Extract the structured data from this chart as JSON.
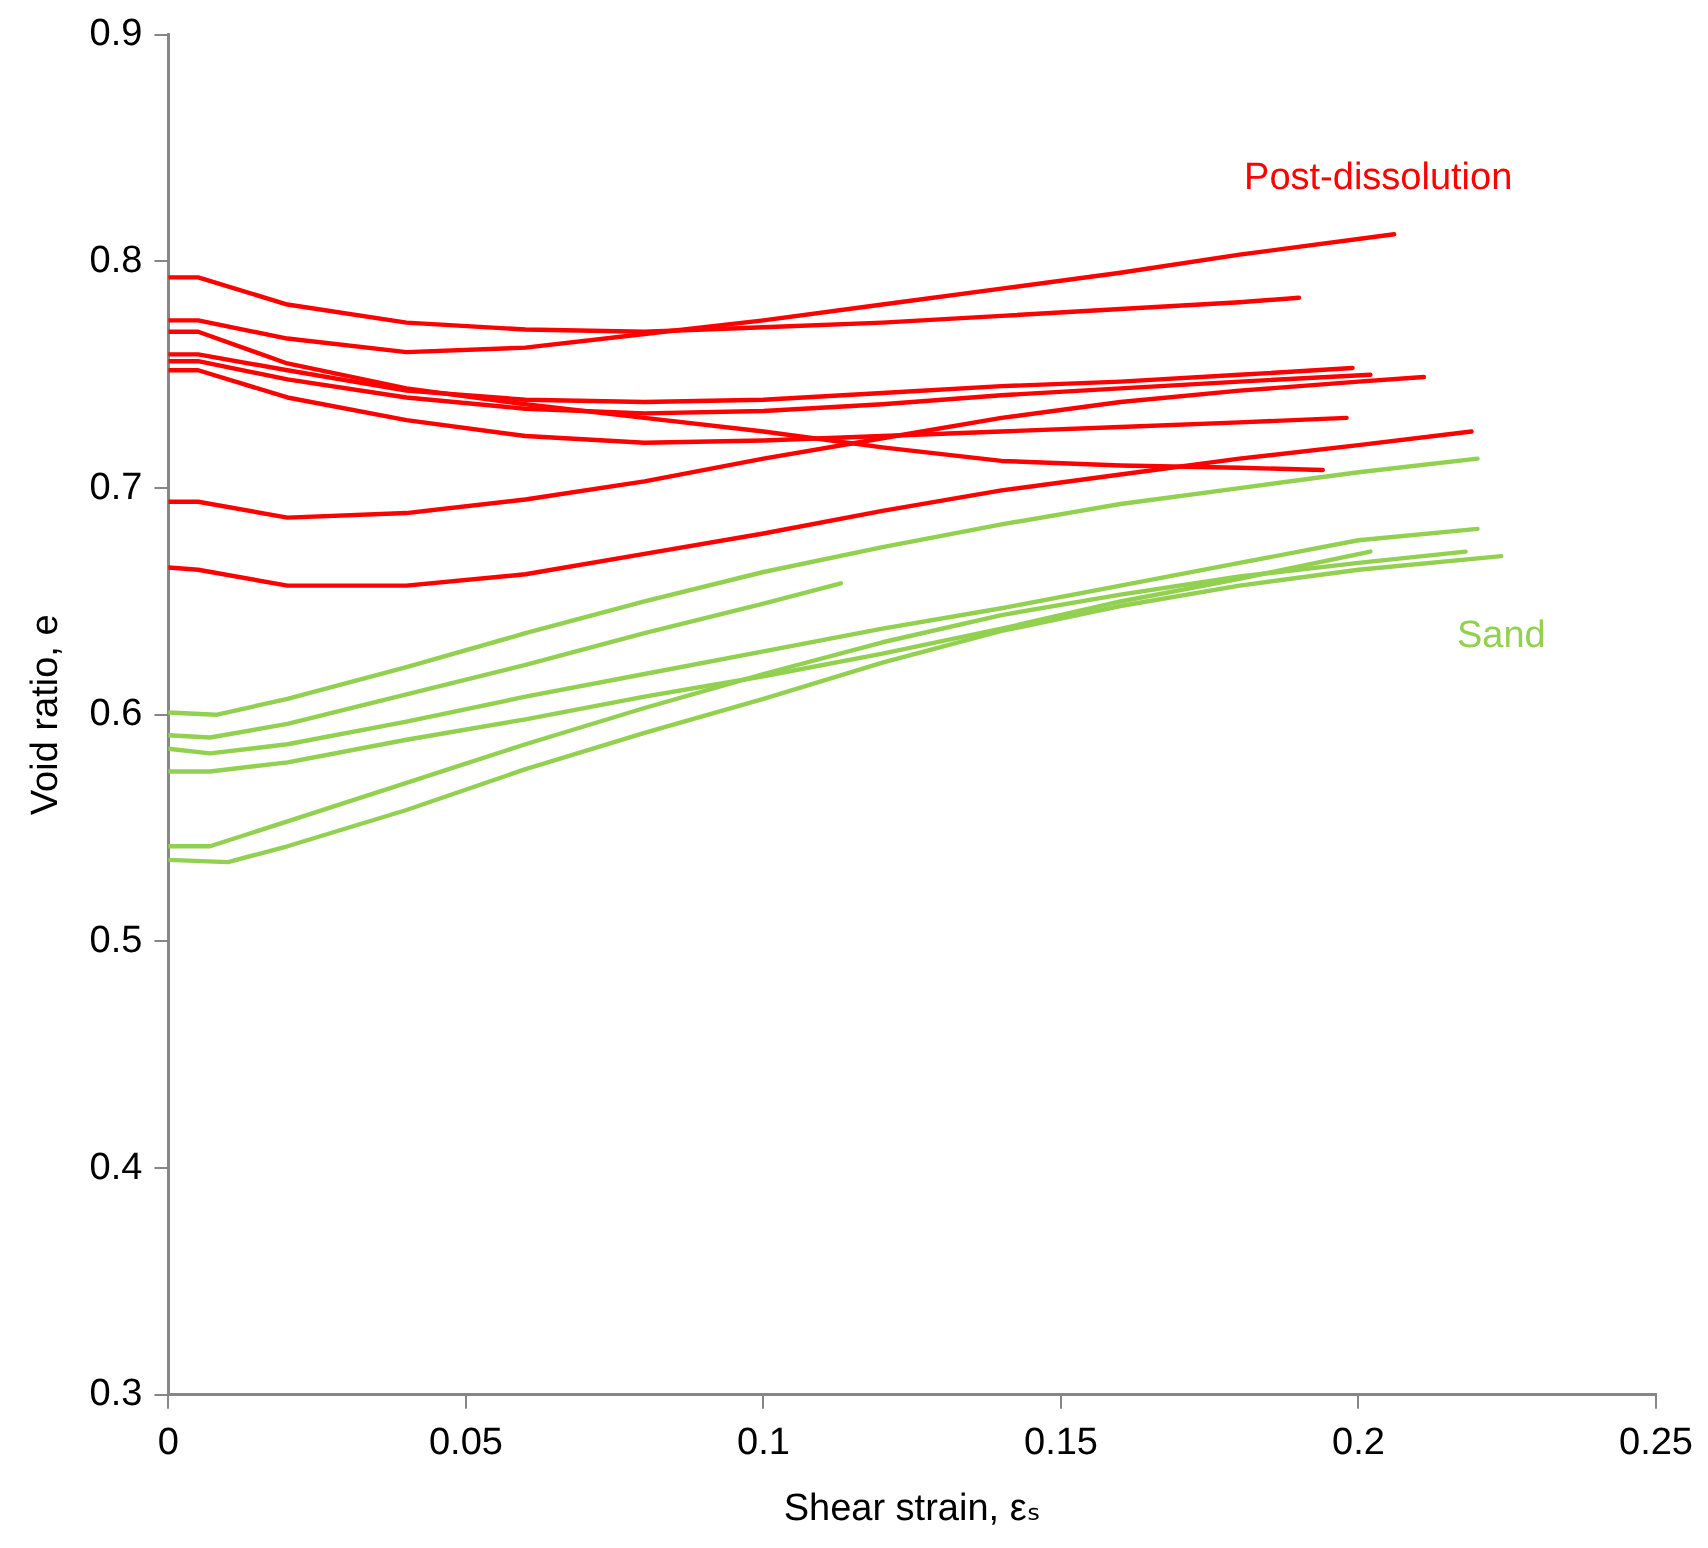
{
  "chart_data": {
    "type": "line",
    "xlabel": "Shear strain, εₛ",
    "ylabel": "Void ratio, e",
    "xlim": [
      0,
      0.25
    ],
    "xticks": [
      0,
      0.05,
      0.1,
      0.15,
      0.2,
      0.25
    ],
    "ylim": [
      0.3,
      0.9
    ],
    "yticks": [
      0.3,
      0.4,
      0.5,
      0.6,
      0.7,
      0.8,
      0.9
    ],
    "grid": false,
    "legend": false,
    "marker": "none",
    "line_style": "solid",
    "annotations": [
      "Post-dissolution",
      "Sand"
    ],
    "series": [
      {
        "color": "#ff0000",
        "x": [
          0,
          0.005,
          0.02,
          0.04,
          0.06,
          0.08,
          0.1,
          0.12,
          0.14,
          0.16,
          0.18,
          0.206
        ],
        "values": [
          0.774,
          0.774,
          0.766,
          0.76,
          0.762,
          0.768,
          0.774,
          0.781,
          0.788,
          0.795,
          0.803,
          0.812
        ]
      },
      {
        "color": "#ff0000",
        "x": [
          0,
          0.005,
          0.02,
          0.04,
          0.06,
          0.08,
          0.1,
          0.12,
          0.14,
          0.16,
          0.18,
          0.19
        ],
        "values": [
          0.793,
          0.793,
          0.781,
          0.773,
          0.77,
          0.769,
          0.771,
          0.773,
          0.776,
          0.779,
          0.782,
          0.784
        ]
      },
      {
        "color": "#ff0000",
        "x": [
          0,
          0.005,
          0.02,
          0.04,
          0.06,
          0.08,
          0.1,
          0.12,
          0.14,
          0.16,
          0.18,
          0.194
        ],
        "values": [
          0.769,
          0.769,
          0.755,
          0.744,
          0.737,
          0.731,
          0.725,
          0.718,
          0.712,
          0.71,
          0.709,
          0.708
        ]
      },
      {
        "color": "#ff0000",
        "x": [
          0,
          0.005,
          0.02,
          0.04,
          0.06,
          0.08,
          0.1,
          0.12,
          0.14,
          0.16,
          0.18,
          0.199
        ],
        "values": [
          0.759,
          0.759,
          0.752,
          0.743,
          0.739,
          0.738,
          0.739,
          0.742,
          0.745,
          0.747,
          0.75,
          0.753
        ]
      },
      {
        "color": "#ff0000",
        "x": [
          0,
          0.005,
          0.02,
          0.04,
          0.06,
          0.08,
          0.1,
          0.12,
          0.14,
          0.16,
          0.18,
          0.202
        ],
        "values": [
          0.756,
          0.756,
          0.748,
          0.74,
          0.735,
          0.733,
          0.734,
          0.737,
          0.741,
          0.744,
          0.747,
          0.75
        ]
      },
      {
        "color": "#ff0000",
        "x": [
          0,
          0.005,
          0.02,
          0.04,
          0.06,
          0.08,
          0.1,
          0.12,
          0.14,
          0.16,
          0.18,
          0.198
        ],
        "values": [
          0.752,
          0.752,
          0.74,
          0.73,
          0.723,
          0.72,
          0.721,
          0.723,
          0.725,
          0.727,
          0.729,
          0.731
        ]
      },
      {
        "color": "#ff0000",
        "x": [
          0,
          0.005,
          0.02,
          0.04,
          0.06,
          0.08,
          0.1,
          0.12,
          0.14,
          0.16,
          0.18,
          0.2,
          0.211
        ],
        "values": [
          0.694,
          0.694,
          0.687,
          0.689,
          0.695,
          0.703,
          0.713,
          0.722,
          0.731,
          0.738,
          0.743,
          0.747,
          0.749
        ]
      },
      {
        "color": "#ff0000",
        "x": [
          0,
          0.005,
          0.02,
          0.04,
          0.06,
          0.08,
          0.1,
          0.12,
          0.14,
          0.16,
          0.18,
          0.2,
          0.219
        ],
        "values": [
          0.665,
          0.664,
          0.657,
          0.657,
          0.662,
          0.671,
          0.68,
          0.69,
          0.699,
          0.706,
          0.713,
          0.719,
          0.725
        ]
      },
      {
        "color": "#92d050",
        "x": [
          0,
          0.008,
          0.02,
          0.04,
          0.06,
          0.08,
          0.1,
          0.12,
          0.14,
          0.16,
          0.18,
          0.2,
          0.22
        ],
        "values": [
          0.601,
          0.6,
          0.607,
          0.621,
          0.636,
          0.65,
          0.663,
          0.674,
          0.684,
          0.693,
          0.7,
          0.707,
          0.713
        ]
      },
      {
        "color": "#92d050",
        "x": [
          0,
          0.007,
          0.02,
          0.04,
          0.06,
          0.08,
          0.1,
          0.113
        ],
        "values": [
          0.591,
          0.59,
          0.596,
          0.609,
          0.622,
          0.636,
          0.649,
          0.658
        ]
      },
      {
        "color": "#92d050",
        "x": [
          0,
          0.007,
          0.02,
          0.04,
          0.06,
          0.08,
          0.1,
          0.12,
          0.14,
          0.16,
          0.18,
          0.2,
          0.22
        ],
        "values": [
          0.585,
          0.583,
          0.587,
          0.597,
          0.608,
          0.618,
          0.628,
          0.638,
          0.647,
          0.657,
          0.667,
          0.677,
          0.682
        ]
      },
      {
        "color": "#92d050",
        "x": [
          0,
          0.007,
          0.02,
          0.04,
          0.06,
          0.08,
          0.1,
          0.12,
          0.14,
          0.16,
          0.18,
          0.202
        ],
        "values": [
          0.575,
          0.575,
          0.579,
          0.589,
          0.598,
          0.608,
          0.617,
          0.627,
          0.638,
          0.65,
          0.66,
          0.672
        ]
      },
      {
        "color": "#92d050",
        "x": [
          0,
          0.007,
          0.02,
          0.04,
          0.06,
          0.08,
          0.1,
          0.12,
          0.14,
          0.16,
          0.18,
          0.2,
          0.218
        ],
        "values": [
          0.542,
          0.542,
          0.553,
          0.57,
          0.587,
          0.603,
          0.618,
          0.632,
          0.644,
          0.653,
          0.661,
          0.667,
          0.672
        ]
      },
      {
        "color": "#92d050",
        "x": [
          0,
          0.01,
          0.02,
          0.04,
          0.06,
          0.08,
          0.1,
          0.12,
          0.14,
          0.16,
          0.18,
          0.2,
          0.224
        ],
        "values": [
          0.536,
          0.535,
          0.542,
          0.558,
          0.576,
          0.592,
          0.607,
          0.623,
          0.637,
          0.648,
          0.657,
          0.664,
          0.67
        ]
      }
    ]
  }
}
